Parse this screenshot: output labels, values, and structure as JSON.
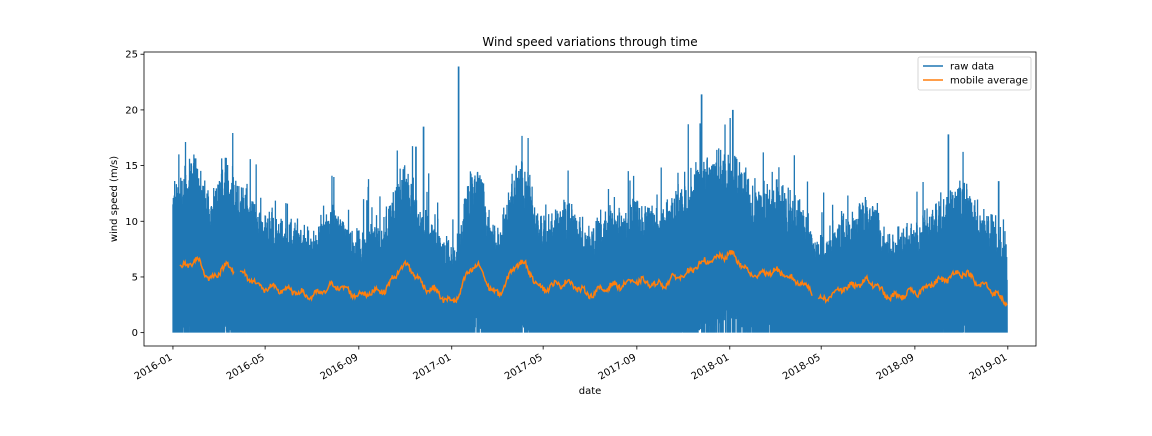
{
  "chart_data": {
    "type": "line",
    "title": "Wind speed variations through time",
    "xlabel": "date",
    "ylabel": "wind speed (m/s)",
    "xlim": [
      "2015-11-24",
      "2019-02-07"
    ],
    "ylim": [
      -1.2,
      25.2
    ],
    "x_ticks": [
      "2016-01",
      "2016-05",
      "2016-09",
      "2017-01",
      "2017-05",
      "2017-09",
      "2018-01",
      "2018-05",
      "2018-09",
      "2019-01"
    ],
    "y_ticks": [
      0,
      5,
      10,
      15,
      20,
      25
    ],
    "grid": false,
    "legend_position": "top-right",
    "series": [
      {
        "name": "raw data",
        "color": "#1f77b4",
        "style": "dense hourly signal ranging 0 to ~24 m/s",
        "peaks": [
          {
            "date": "2016-01-25",
            "value": 15.2
          },
          {
            "date": "2016-03-10",
            "value": 15.7
          },
          {
            "date": "2016-11-15",
            "value": 16.7
          },
          {
            "date": "2016-11-25",
            "value": 18.5
          },
          {
            "date": "2017-01-10",
            "value": 23.9
          },
          {
            "date": "2017-11-25",
            "value": 21.4
          },
          {
            "date": "2018-01-05",
            "value": 20.0
          },
          {
            "date": "2018-10-15",
            "value": 17.8
          },
          {
            "date": "2018-12-20",
            "value": 13.6
          }
        ]
      },
      {
        "name": "mobile average",
        "color": "#ff7f0e",
        "style": "smoothed running mean",
        "x": [
          "2016-01-10",
          "2016-02-01",
          "2016-02-20",
          "2016-03-10",
          "2016-04-01",
          "2016-05-01",
          "2016-06-01",
          "2016-07-01",
          "2016-08-01",
          "2016-09-01",
          "2016-10-01",
          "2016-11-01",
          "2016-12-01",
          "2017-01-01",
          "2017-02-01",
          "2017-03-01",
          "2017-04-01",
          "2017-05-01",
          "2017-06-01",
          "2017-07-01",
          "2017-08-01",
          "2017-09-01",
          "2017-10-01",
          "2017-11-01",
          "2017-12-01",
          "2018-01-01",
          "2018-02-01",
          "2018-03-01",
          "2018-04-01",
          "2018-05-01",
          "2018-06-01",
          "2018-07-01",
          "2018-08-01",
          "2018-09-01",
          "2018-10-01",
          "2018-11-01",
          "2018-12-01",
          "2018-12-31"
        ],
        "y": [
          5.8,
          6.5,
          4.8,
          6.0,
          5.2,
          4.0,
          3.8,
          3.3,
          4.2,
          3.4,
          3.8,
          6.0,
          4.0,
          2.8,
          6.0,
          3.5,
          6.3,
          4.0,
          4.5,
          3.5,
          4.2,
          4.6,
          4.3,
          5.2,
          6.4,
          7.0,
          5.2,
          5.5,
          4.6,
          3.0,
          4.0,
          4.6,
          3.2,
          3.6,
          4.6,
          5.4,
          4.2,
          2.8
        ]
      }
    ]
  }
}
